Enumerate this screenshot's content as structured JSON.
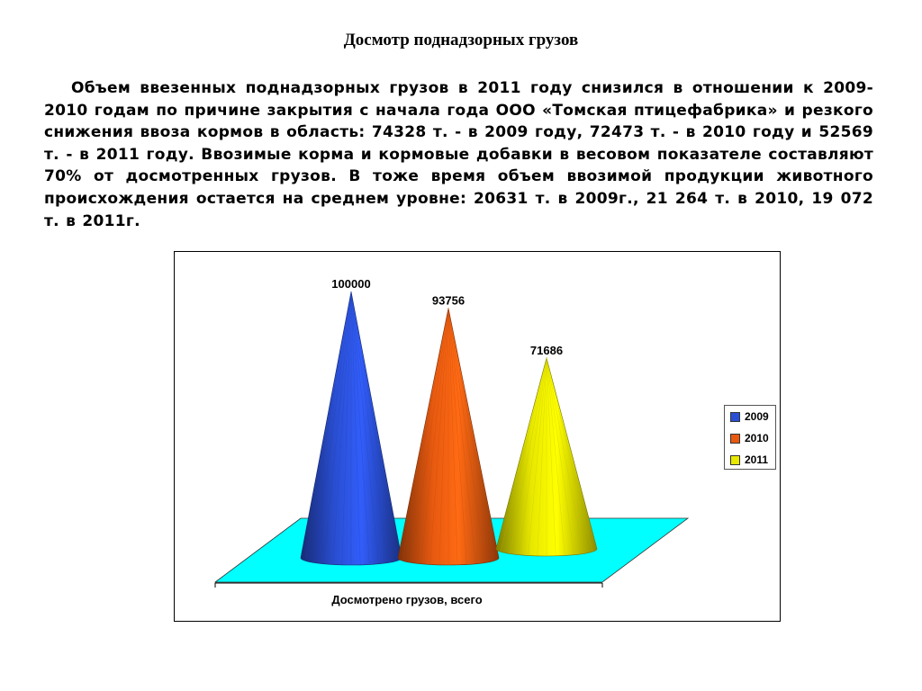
{
  "title": "Досмотр поднадзорных грузов",
  "paragraph": "Объем ввезенных поднадзорных грузов в  2011 году снизился в отношении к 2009-2010 годам по причине закрытия с начала года ООО «Томская птицефабрика» и резкого снижения ввоза кормов в область: 74328 т. - в 2009 году, 72473 т. - в 2010 году и 52569 т. - в 2011 году. Ввозимые корма и кормовые добавки в весовом показателе составляют 70% от досмотренных грузов. В тоже время объем ввозимой продукции животного происхождения остается на среднем уровне: 20631 т. в 2009г., 21 264 т. в 2010,  19 072 т. в 2011г.",
  "chart_data": {
    "type": "bar",
    "style": "3d-cone",
    "xlabel": "Досмотрено грузов, всего",
    "categories": [
      "Досмотрено грузов, всего"
    ],
    "series": [
      {
        "name": "2009",
        "values": [
          100000
        ],
        "label": "100000",
        "color": "#2a4fd4"
      },
      {
        "name": "2010",
        "values": [
          93756
        ],
        "label": "93756",
        "color": "#e85a10"
      },
      {
        "name": "2011",
        "values": [
          71686
        ],
        "label": "71686",
        "color": "#e8e800"
      }
    ],
    "floor_color": "#00ffff",
    "legend_position": "right",
    "grid": false
  }
}
